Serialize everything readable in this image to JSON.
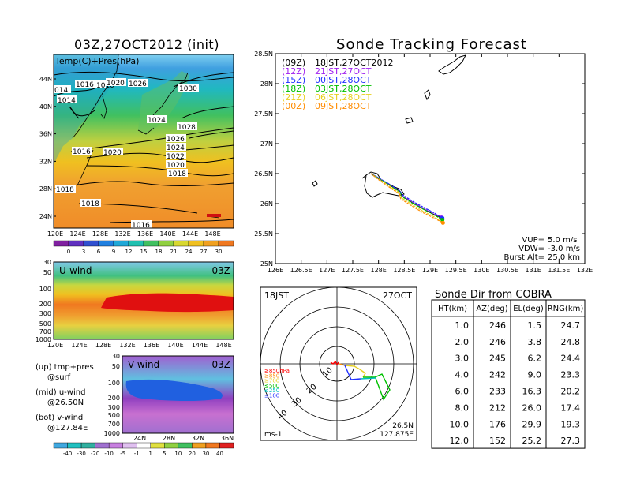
{
  "left_title": "03Z,27OCT2012 (init)",
  "map_panel": {
    "label": "Temp(C)+Pres(hPa)",
    "y_ticks": [
      "44N",
      "40N",
      "36N",
      "32N",
      "28N",
      "24N"
    ],
    "x_ticks": [
      "120E",
      "124E",
      "128E",
      "132E",
      "136E",
      "140E",
      "144E",
      "148E"
    ],
    "isobars": [
      "014",
      "1014",
      "1016",
      "1010",
      "1020",
      "1026",
      "1030",
      "1024",
      "1028",
      "1016",
      "1020",
      "1026",
      "1024",
      "1022",
      "1020",
      "1018",
      "1018",
      "1018",
      "1016"
    ],
    "colorbar": [
      "0",
      "3",
      "6",
      "9",
      "12",
      "15",
      "18",
      "21",
      "24",
      "27",
      "30"
    ]
  },
  "u_panel": {
    "title": "U-wind",
    "time": "03Z",
    "y_ticks": [
      "30",
      "50",
      "100",
      "200",
      "300",
      "500",
      "700",
      "1000"
    ],
    "x_ticks": [
      "120E",
      "124E",
      "128E",
      "132E",
      "136E",
      "140E",
      "144E",
      "148E"
    ]
  },
  "v_panel": {
    "title": "V-wind",
    "time": "03Z",
    "y_ticks": [
      "30",
      "50",
      "100",
      "200",
      "300",
      "500",
      "700",
      "1000"
    ],
    "x_ticks": [
      "24N",
      "28N",
      "32N",
      "36N"
    ],
    "colorbar": [
      "-40",
      "-30",
      "-20",
      "-10",
      "-5",
      "-1",
      "1",
      "5",
      "10",
      "20",
      "30",
      "40"
    ]
  },
  "legend_notes": [
    {
      "line1": "(up) tmp+pres",
      "line2": "@surf"
    },
    {
      "line1": "(mid) u-wind",
      "line2": "@26.50N"
    },
    {
      "line1": "(bot) v-wind",
      "line2": "@127.84E"
    }
  ],
  "chart_data": {
    "type": "line",
    "title": "Sonde Tracking Forecast",
    "x_ticks": [
      "126E",
      "126.5E",
      "127E",
      "127.5E",
      "128E",
      "128.5E",
      "129E",
      "129.5E",
      "130E",
      "130.5E",
      "131E",
      "131.5E",
      "132E"
    ],
    "y_ticks": [
      "28.5N",
      "28N",
      "27.5N",
      "27N",
      "26.5N",
      "26N",
      "25.5N",
      "25N"
    ],
    "xlim": [
      126,
      132
    ],
    "ylim": [
      25,
      28.5
    ],
    "series": [
      {
        "name": "(09Z)",
        "label": "18JST,27OCT2012",
        "color": "#000000",
        "points": [
          [
            127.85,
            26.5
          ],
          [
            128.0,
            26.42
          ],
          [
            128.2,
            26.32
          ],
          [
            128.42,
            26.2
          ],
          [
            128.45,
            26.13
          ],
          [
            128.65,
            26.02
          ],
          [
            128.85,
            25.92
          ],
          [
            129.05,
            25.83
          ],
          [
            129.22,
            25.76
          ]
        ]
      },
      {
        "name": "(12Z)",
        "label": "21JST,27OCT",
        "color": "#a020f0",
        "points": [
          [
            127.85,
            26.5
          ],
          [
            128.0,
            26.42
          ],
          [
            128.2,
            26.32
          ],
          [
            128.42,
            26.2
          ],
          [
            128.45,
            26.14
          ],
          [
            128.65,
            26.03
          ],
          [
            128.85,
            25.93
          ],
          [
            129.05,
            25.84
          ],
          [
            129.22,
            25.77
          ]
        ]
      },
      {
        "name": "(15Z)",
        "label": "00JST,28OCT",
        "color": "#2030ff",
        "points": [
          [
            127.85,
            26.5
          ],
          [
            128.0,
            26.43
          ],
          [
            128.2,
            26.33
          ],
          [
            128.42,
            26.21
          ],
          [
            128.46,
            26.15
          ],
          [
            128.66,
            26.04
          ],
          [
            128.87,
            25.94
          ],
          [
            129.07,
            25.85
          ],
          [
            129.24,
            25.76
          ]
        ]
      },
      {
        "name": "(18Z)",
        "label": "03JST,28OCT",
        "color": "#00c000",
        "points": [
          [
            127.85,
            26.5
          ],
          [
            128.0,
            26.42
          ],
          [
            128.2,
            26.31
          ],
          [
            128.42,
            26.19
          ],
          [
            128.45,
            26.12
          ],
          [
            128.65,
            26.01
          ],
          [
            128.86,
            25.91
          ],
          [
            129.06,
            25.82
          ],
          [
            129.24,
            25.73
          ]
        ]
      },
      {
        "name": "(21Z)",
        "label": "06JST,28OCT",
        "color": "#e8d020",
        "points": [
          [
            127.85,
            26.5
          ],
          [
            128.0,
            26.41
          ],
          [
            128.2,
            26.3
          ],
          [
            128.4,
            26.18
          ],
          [
            128.44,
            26.1
          ],
          [
            128.64,
            25.99
          ],
          [
            128.85,
            25.88
          ],
          [
            129.06,
            25.79
          ],
          [
            129.25,
            25.68
          ]
        ]
      },
      {
        "name": "(00Z)",
        "label": "09JST,28OCT",
        "color": "#ff8c00",
        "points": [
          [
            127.85,
            26.5
          ],
          [
            128.0,
            26.4
          ],
          [
            128.2,
            26.28
          ],
          [
            128.4,
            26.16
          ],
          [
            128.43,
            26.08
          ],
          [
            128.63,
            25.97
          ],
          [
            128.84,
            25.86
          ],
          [
            129.05,
            25.77
          ],
          [
            129.25,
            25.68
          ]
        ]
      }
    ],
    "params": [
      {
        "label": "VUP=",
        "value": "5.0 m/s"
      },
      {
        "label": "VDW=",
        "value": "-3.0 m/s"
      },
      {
        "label": "Burst Alt=",
        "value": "25.0 km"
      }
    ]
  },
  "polar": {
    "time_label": "18JST",
    "date_label": "27OCT",
    "ring_labels": [
      "10",
      "20",
      "30",
      "40"
    ],
    "level_legend": [
      {
        "label": "≥850hPa",
        "color": "#ff0000"
      },
      {
        "label": "≥850",
        "color": "#ff8c00"
      },
      {
        "label": "≥700",
        "color": "#e8d020"
      },
      {
        "label": "≤500",
        "color": "#00c000"
      },
      {
        "label": "≤250",
        "color": "#00c0c0"
      },
      {
        "label": "≤100",
        "color": "#2030ff"
      }
    ],
    "unit": "ms-1",
    "loc_lat": "26.5N",
    "loc_lon": "127.875E"
  },
  "table": {
    "title": "Sonde Dir from COBRA",
    "headers": [
      "HT(km)",
      "AZ(deg)",
      "EL(deg)",
      "RNG(km)"
    ],
    "rows": [
      [
        "1.0",
        "246",
        "1.5",
        "24.7"
      ],
      [
        "2.0",
        "246",
        "3.8",
        "24.8"
      ],
      [
        "3.0",
        "245",
        "6.2",
        "24.4"
      ],
      [
        "4.0",
        "242",
        "9.0",
        "23.3"
      ],
      [
        "6.0",
        "233",
        "16.3",
        "20.2"
      ],
      [
        "8.0",
        "212",
        "26.0",
        "17.4"
      ],
      [
        "10.0",
        "176",
        "29.9",
        "19.3"
      ],
      [
        "12.0",
        "152",
        "25.2",
        "27.3"
      ]
    ]
  }
}
